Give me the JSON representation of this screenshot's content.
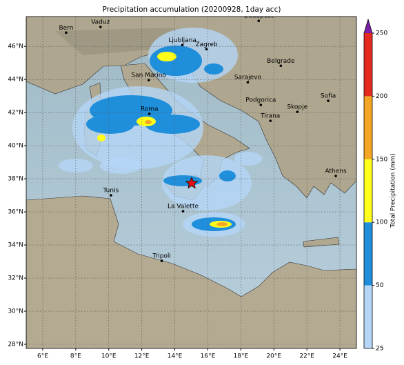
{
  "map": {
    "title": "Precipitation accumulation (20200928, 1day acc)",
    "lonlim": [
      5,
      25
    ],
    "latlim": [
      27.75,
      47.8
    ],
    "lon_ticks": [
      {
        "value": 6,
        "label": "6°E"
      },
      {
        "value": 8,
        "label": "8°E"
      },
      {
        "value": 10,
        "label": "10°E"
      },
      {
        "value": 12,
        "label": "12°E"
      },
      {
        "value": 14,
        "label": "14°E"
      },
      {
        "value": 16,
        "label": "16°E"
      },
      {
        "value": 18,
        "label": "18°E"
      },
      {
        "value": 20,
        "label": "20°E"
      },
      {
        "value": 22,
        "label": "22°E"
      },
      {
        "value": 24,
        "label": "24°E"
      }
    ],
    "lat_ticks": [
      {
        "value": 28,
        "label": "28°N"
      },
      {
        "value": 30,
        "label": "30°N"
      },
      {
        "value": 32,
        "label": "32°N"
      },
      {
        "value": 34,
        "label": "34°N"
      },
      {
        "value": 36,
        "label": "36°N"
      },
      {
        "value": 38,
        "label": "38°N"
      },
      {
        "value": 40,
        "label": "40°N"
      },
      {
        "value": 42,
        "label": "42°N"
      },
      {
        "value": 44,
        "label": "44°N"
      },
      {
        "value": 46,
        "label": "46°N"
      }
    ],
    "cities": [
      {
        "name": "Bern",
        "lon": 7.42,
        "lat": 46.83
      },
      {
        "name": "Vaduz",
        "lon": 9.5,
        "lat": 47.17
      },
      {
        "name": "Budapest",
        "lon": 19.08,
        "lat": 47.54
      },
      {
        "name": "Ljubljana",
        "lon": 14.46,
        "lat": 46.08
      },
      {
        "name": "Zagreb",
        "lon": 15.92,
        "lat": 45.83
      },
      {
        "name": "Belgrade",
        "lon": 20.42,
        "lat": 44.83
      },
      {
        "name": "Sarajevo",
        "lon": 18.42,
        "lat": 43.83
      },
      {
        "name": "San Marino",
        "lon": 12.42,
        "lat": 43.96
      },
      {
        "name": "Sofia",
        "lon": 23.29,
        "lat": 42.71
      },
      {
        "name": "Podgorica",
        "lon": 19.21,
        "lat": 42.46
      },
      {
        "name": "Skopje",
        "lon": 21.42,
        "lat": 42.04
      },
      {
        "name": "Roma",
        "lon": 12.46,
        "lat": 41.92
      },
      {
        "name": "Tirana",
        "lon": 19.79,
        "lat": 41.5
      },
      {
        "name": "Athens",
        "lon": 23.75,
        "lat": 38.17
      },
      {
        "name": "Tunis",
        "lon": 10.13,
        "lat": 37.0
      },
      {
        "name": "La Valette",
        "lon": 14.5,
        "lat": 36.04
      },
      {
        "name": "Tripoli",
        "lon": 13.21,
        "lat": 33.04
      }
    ],
    "colorbar": {
      "label": "Total Precipitation (mm)",
      "ticks": [
        25,
        50,
        100,
        150,
        200,
        250
      ],
      "colors": [
        "#b4d6f7",
        "#1f8fdc",
        "#ffff1a",
        "#f4a524",
        "#e42a1f"
      ],
      "extend_color": "#7a20a8"
    }
  }
}
